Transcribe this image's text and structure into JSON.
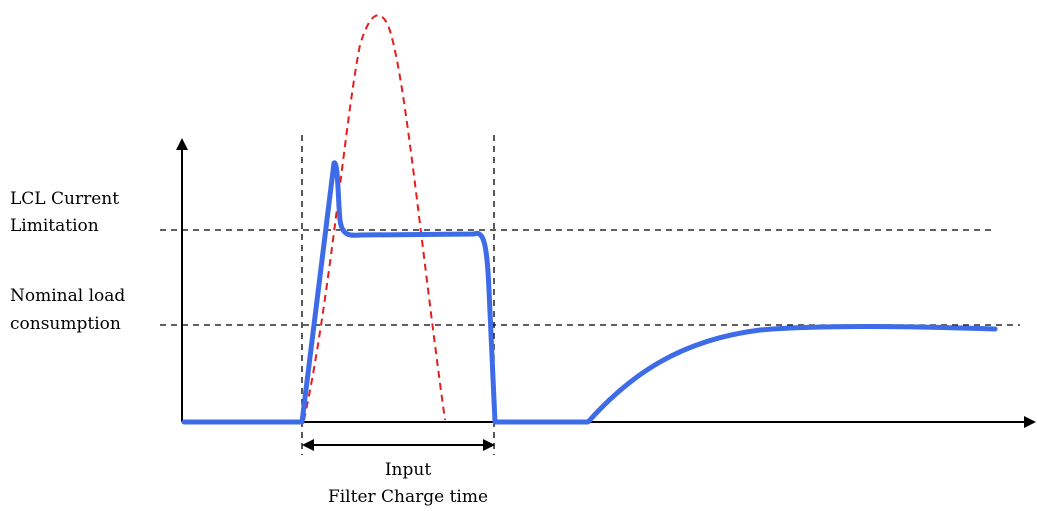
{
  "labels": {
    "lcl_line1": "LCL Current",
    "lcl_line2": "Limitation",
    "nominal_line1": "Nominal load",
    "nominal_line2": "consumption",
    "charge_line1": "Input",
    "charge_line2": "Filter Charge time"
  },
  "colors": {
    "current_curve": "#3e6ce8",
    "unlimited_curve": "#e81c1c",
    "axes": "#000000",
    "guides": "#000000"
  }
}
